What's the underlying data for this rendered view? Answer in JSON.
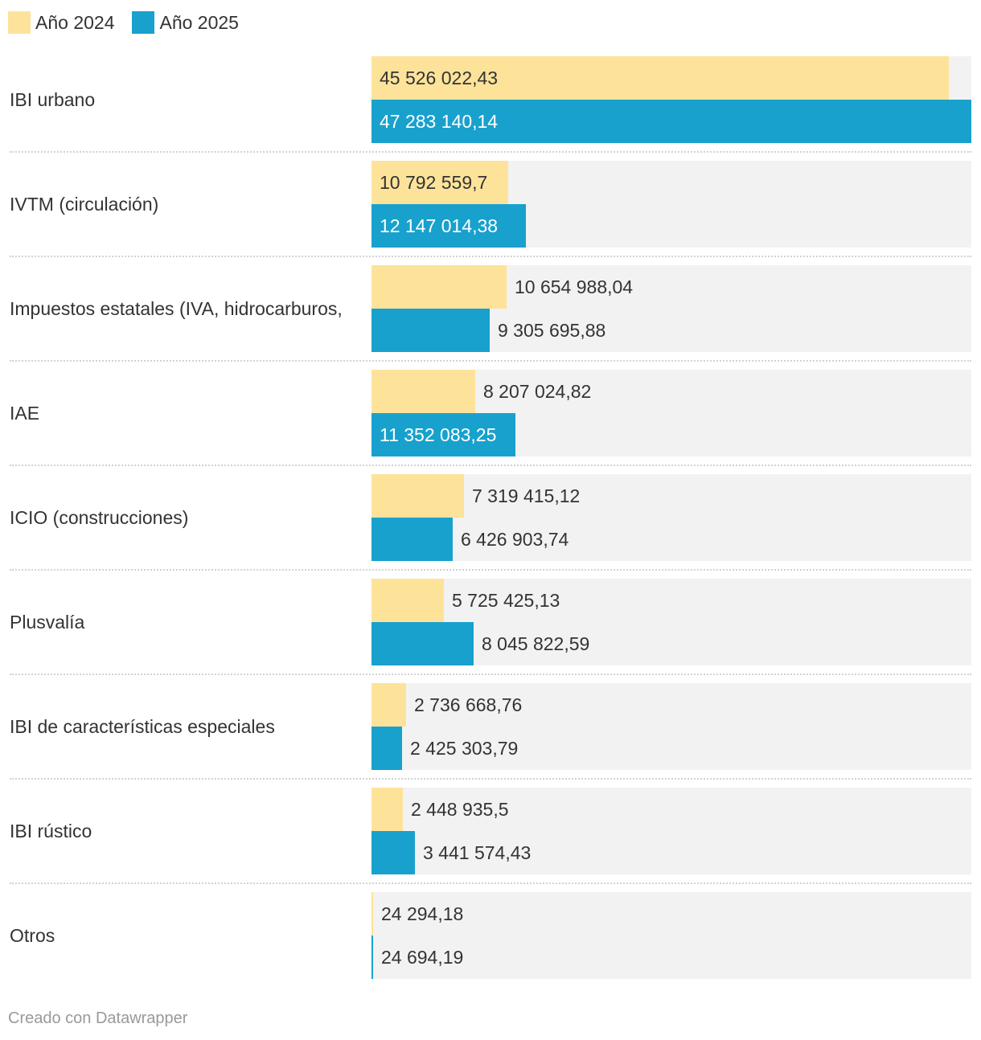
{
  "legend": [
    {
      "label": "Año 2024",
      "color": "#fde39a"
    },
    {
      "label": "Año 2025",
      "color": "#18a1cd"
    }
  ],
  "footer": "Creado con Datawrapper",
  "chart_data": {
    "type": "bar",
    "orientation": "horizontal",
    "categories": [
      "IBI urbano",
      "IVTM (circulación)",
      "Impuestos estatales (IVA, hidrocarburos,",
      "IAE",
      "ICIO (construcciones)",
      "Plusvalía",
      "IBI de características especiales",
      "IBI rústico",
      "Otros"
    ],
    "series": [
      {
        "name": "Año 2024",
        "color": "#fde39a",
        "values": [
          45526022.43,
          10792559.7,
          10654988.04,
          8207024.82,
          7319415.12,
          5725425.13,
          2736668.76,
          2448935.5,
          24294.18
        ],
        "labels": [
          "45 526 022,43",
          "10 792 559,7",
          "10 654 988,04",
          "8 207 024,82",
          "7 319 415,12",
          "5 725 425,13",
          "2 736 668,76",
          "2 448 935,5",
          "24 294,18"
        ]
      },
      {
        "name": "Año 2025",
        "color": "#18a1cd",
        "values": [
          47283140.14,
          12147014.38,
          9305695.88,
          11352083.25,
          6426903.74,
          8045822.59,
          2425303.79,
          3441574.43,
          24694.19
        ],
        "labels": [
          "47 283 140,14",
          "12 147 014,38",
          "9 305 695,88",
          "11 352 083,25",
          "6 426 903,74",
          "8 045 822,59",
          "2 425 303,79",
          "3 441 574,43",
          "24 694,19"
        ]
      }
    ],
    "xlim": [
      0,
      47283140.14
    ]
  }
}
